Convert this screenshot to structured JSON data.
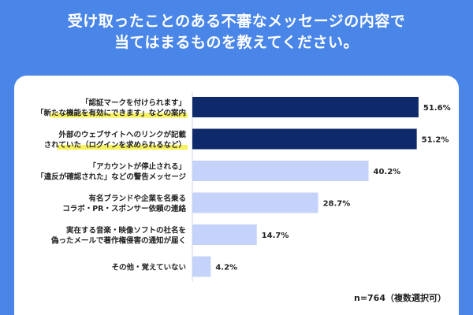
{
  "header": {
    "title_line1": "受け取ったことのある不審なメッセージの内容で",
    "title_line2": "当てはまるものを教えてください。"
  },
  "footnote": "n=764（複数選択可）",
  "colors": {
    "background": "#4a86e8",
    "card": "#ffffff",
    "bar_dark": "#0f2a6b",
    "bar_light": "#c5d3fa",
    "highlight": "#f7f25a"
  },
  "chart_data": {
    "type": "bar",
    "orientation": "horizontal",
    "categories": [
      [
        "「認証マークを付けられます」",
        "「新たな機能を有効にできます」などの案内"
      ],
      [
        "外部のウェブサイトへのリンクが記載",
        "されていた（ログインを求められるなど）"
      ],
      [
        "「アカウントが停止される」",
        "「違反が確認された」などの警告メッセージ"
      ],
      [
        "有名ブランドや企業を名乗る",
        "コラボ・PR・スポンサー依頼の連絡"
      ],
      [
        "実在する音楽・映像ソフトの社名を",
        "偽ったメールで著作権侵害の通知が届く"
      ],
      [
        "その他・覚えていない"
      ]
    ],
    "values": [
      51.6,
      51.2,
      40.2,
      28.7,
      14.7,
      4.2
    ],
    "value_labels": [
      "51.6%",
      "51.2%",
      "40.2%",
      "28.7%",
      "14.7%",
      "4.2%"
    ],
    "highlighted": [
      true,
      true,
      false,
      false,
      false,
      false
    ],
    "unit": "%",
    "xlim": [
      0,
      55
    ]
  }
}
